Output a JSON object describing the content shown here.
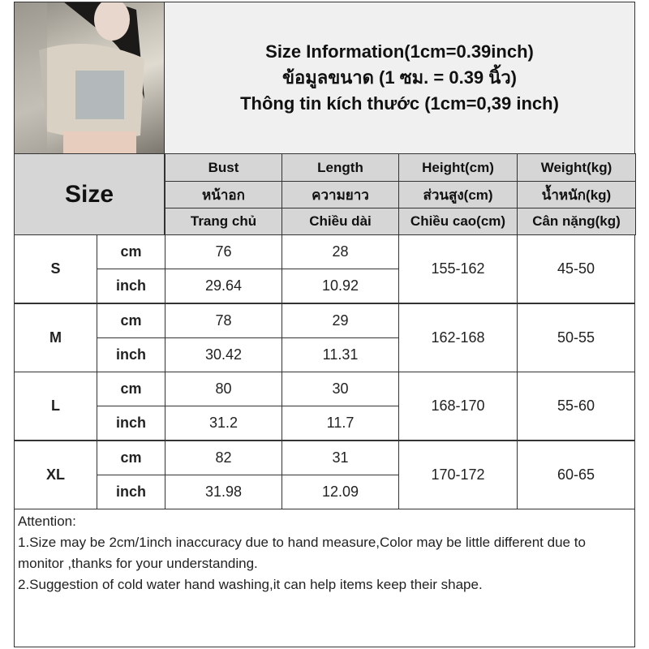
{
  "title": {
    "line1": "Size Information(1cm=0.39inch)",
    "line2": "ข้อมูลขนาด (1 ซม. = 0.39 นิ้ว)",
    "line3": "Thông tin kích thước (1cm=0,39 inch)"
  },
  "header": {
    "size_label": "Size",
    "columns": [
      {
        "en": "Bust",
        "th": "หน้าอก",
        "vi": "Trang chủ"
      },
      {
        "en": "Length",
        "th": "ความยาว",
        "vi": "Chiều dài"
      },
      {
        "en": "Height(cm)",
        "th": "ส่วนสูง(cm)",
        "vi": "Chiều cao(cm)"
      },
      {
        "en": "Weight(kg)",
        "th": "น้ำหนัก(kg)",
        "vi": "Cân nặng(kg)"
      }
    ]
  },
  "sizes": [
    {
      "size": "S",
      "cm_label": "cm",
      "inch_label": "inch",
      "bust_cm": "76",
      "length_cm": "28",
      "bust_in": "29.64",
      "length_in": "10.92",
      "height": "155-162",
      "weight": "45-50"
    },
    {
      "size": "M",
      "cm_label": "cm",
      "inch_label": "inch",
      "bust_cm": "78",
      "length_cm": "29",
      "bust_in": "30.42",
      "length_in": "11.31",
      "height": "162-168",
      "weight": "50-55"
    },
    {
      "size": "L",
      "cm_label": "cm",
      "inch_label": "inch",
      "bust_cm": "80",
      "length_cm": "30",
      "bust_in": "31.2",
      "length_in": "11.7",
      "height": "168-170",
      "weight": "55-60"
    },
    {
      "size": "XL",
      "cm_label": "cm",
      "inch_label": "inch",
      "bust_cm": "82",
      "length_cm": "31",
      "bust_in": "31.98",
      "length_in": "12.09",
      "height": "170-172",
      "weight": "60-65"
    }
  ],
  "attention": {
    "heading": "Attention:",
    "line1": "1.Size may be 2cm/1inch inaccuracy due to hand measure,Color may be little different due to monitor ,thanks for your understanding.",
    "line2": "2.Suggestion of cold water hand washing,it can help items keep their shape."
  }
}
